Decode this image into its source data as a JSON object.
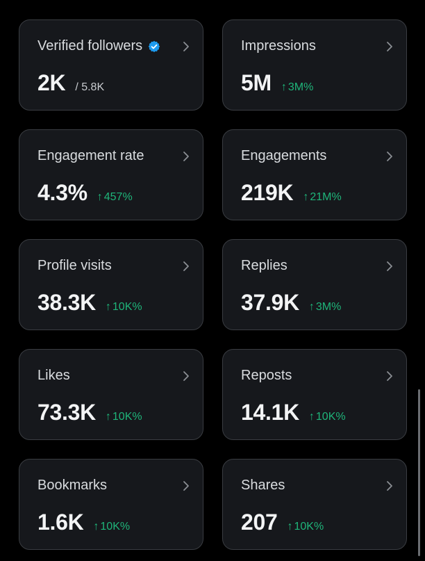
{
  "cards": [
    {
      "label": "Verified followers",
      "value": "2K",
      "subvalue": "/ 5.8K",
      "delta": "",
      "verified_badge": true,
      "icon": "chevron-right-icon"
    },
    {
      "label": "Impressions",
      "value": "5M",
      "subvalue": "",
      "delta": "3M%",
      "icon": "chevron-right-icon"
    },
    {
      "label": "Engagement rate",
      "value": "4.3%",
      "subvalue": "",
      "delta": "457%",
      "icon": "chevron-right-icon"
    },
    {
      "label": "Engagements",
      "value": "219K",
      "subvalue": "",
      "delta": "21M%",
      "icon": "chevron-right-icon"
    },
    {
      "label": "Profile visits",
      "value": "38.3K",
      "subvalue": "",
      "delta": "10K%",
      "icon": "chevron-right-icon"
    },
    {
      "label": "Replies",
      "value": "37.9K",
      "subvalue": "",
      "delta": "3M%",
      "icon": "chevron-right-icon"
    },
    {
      "label": "Likes",
      "value": "73.3K",
      "subvalue": "",
      "delta": "10K%",
      "icon": "chevron-right-icon"
    },
    {
      "label": "Reposts",
      "value": "14.1K",
      "subvalue": "",
      "delta": "10K%",
      "icon": "chevron-right-icon"
    },
    {
      "label": "Bookmarks",
      "value": "1.6K",
      "subvalue": "",
      "delta": "10K%",
      "icon": "chevron-right-icon"
    },
    {
      "label": "Shares",
      "value": "207",
      "subvalue": "",
      "delta": "10K%",
      "icon": "chevron-right-icon"
    }
  ],
  "colors": {
    "background": "#000000",
    "card_background": "#16181c",
    "card_border": "#3a3d42",
    "positive_delta": "#1fb57a",
    "verified_badge": "#1d9bf0"
  }
}
